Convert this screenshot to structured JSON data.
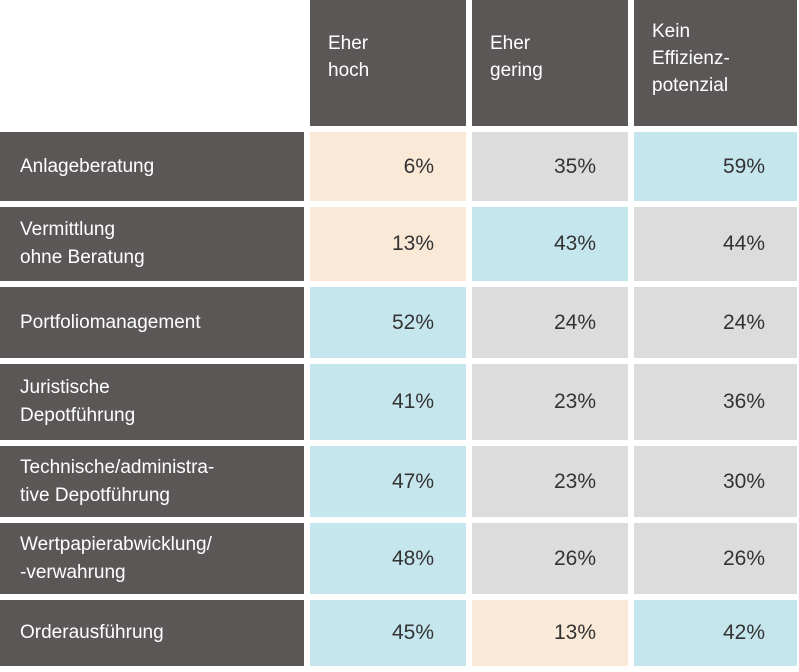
{
  "chart_data": {
    "type": "table",
    "columns": [
      "Eher\nhoch",
      "Eher\ngering",
      "Kein\nEffizienz-\npotenzial"
    ],
    "rows": [
      {
        "label": "Anlageberatung",
        "values": [
          "6%",
          "35%",
          "59%"
        ],
        "colors": [
          "beige",
          "gray",
          "blue"
        ]
      },
      {
        "label": "Vermittlung\nohne Beratung",
        "values": [
          "13%",
          "43%",
          "44%"
        ],
        "colors": [
          "beige",
          "blue",
          "gray"
        ]
      },
      {
        "label": "Portfoliomanagement",
        "values": [
          "52%",
          "24%",
          "24%"
        ],
        "colors": [
          "blue",
          "gray",
          "gray"
        ]
      },
      {
        "label": "Juristische\nDepotführung",
        "values": [
          "41%",
          "23%",
          "36%"
        ],
        "colors": [
          "blue",
          "gray",
          "gray"
        ]
      },
      {
        "label": "Technische/administra-\ntive Depotführung",
        "values": [
          "47%",
          "23%",
          "30%"
        ],
        "colors": [
          "blue",
          "gray",
          "gray"
        ]
      },
      {
        "label": "Wertpapierabwicklung/\n-verwahrung",
        "values": [
          "48%",
          "26%",
          "26%"
        ],
        "colors": [
          "blue",
          "gray",
          "gray"
        ]
      },
      {
        "label": "Orderausführung",
        "values": [
          "45%",
          "13%",
          "42%"
        ],
        "colors": [
          "blue",
          "beige",
          "blue"
        ]
      }
    ],
    "palette": {
      "header": "#5b5757",
      "beige": "#f9e9d6",
      "gray": "#dcdcdc",
      "blue": "#c6e6ee"
    }
  }
}
